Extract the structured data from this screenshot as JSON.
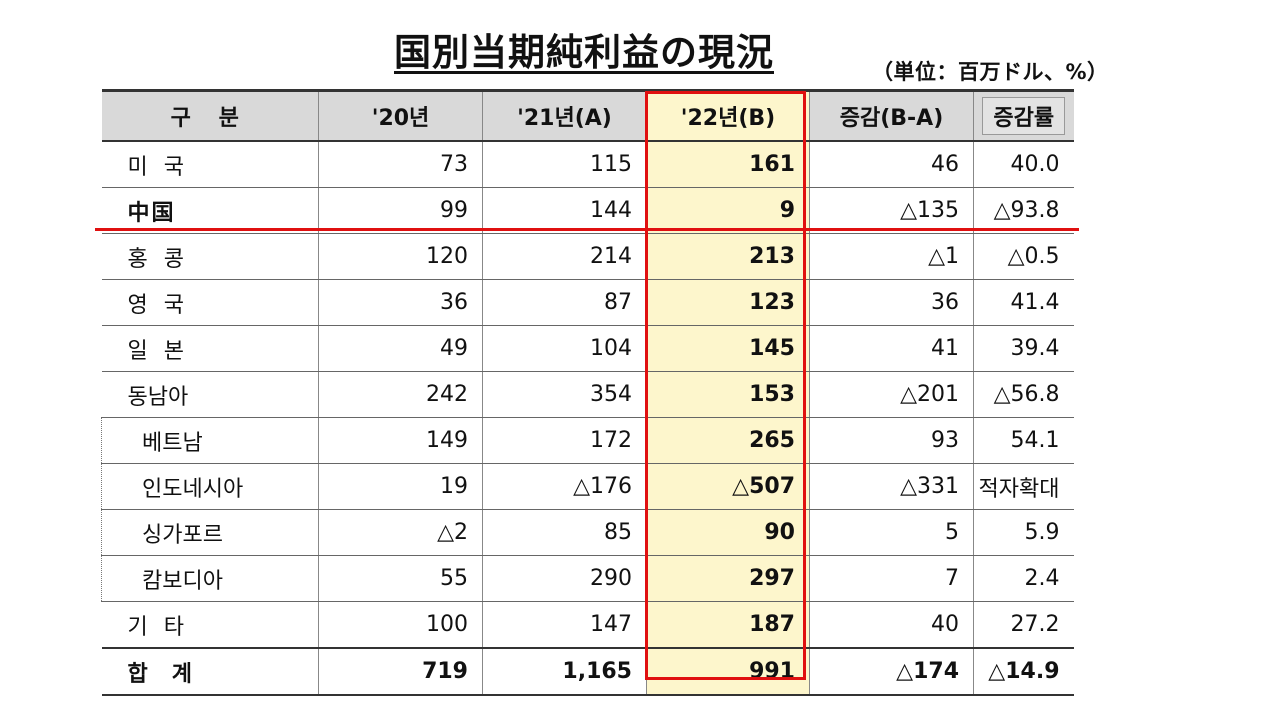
{
  "title": "国別当期純利益の現況",
  "unit": "（単位：百万ドル、%）",
  "colors": {
    "highlight": "#fdf6cc",
    "accent_red": "#e01010",
    "header_bg": "#d9d9d9"
  },
  "table": {
    "headers": [
      "구 분",
      "'20년",
      "'21년(A)",
      "'22년(B)",
      "증감(B-A)",
      "증감률"
    ],
    "rows": [
      {
        "label": "미국",
        "values": [
          "73",
          "115",
          "161",
          "46",
          "40.0"
        ]
      },
      {
        "label": "中国",
        "values": [
          "99",
          "144",
          "9",
          "△135",
          "△93.8"
        ]
      },
      {
        "label": "홍콩",
        "values": [
          "120",
          "214",
          "213",
          "△1",
          "△0.5"
        ]
      },
      {
        "label": "영국",
        "values": [
          "36",
          "87",
          "123",
          "36",
          "41.4"
        ]
      },
      {
        "label": "일본",
        "values": [
          "49",
          "104",
          "145",
          "41",
          "39.4"
        ]
      },
      {
        "label": "동남아",
        "values": [
          "242",
          "354",
          "153",
          "△201",
          "△56.8"
        ]
      },
      {
        "label": "베트남",
        "values": [
          "149",
          "172",
          "265",
          "93",
          "54.1"
        ]
      },
      {
        "label": "인도네시아",
        "values": [
          "19",
          "△176",
          "△507",
          "△331",
          "적자확대"
        ]
      },
      {
        "label": "싱가포르",
        "values": [
          "△2",
          "85",
          "90",
          "5",
          "5.9"
        ]
      },
      {
        "label": "캄보디아",
        "values": [
          "55",
          "290",
          "297",
          "7",
          "2.4"
        ]
      },
      {
        "label": "기타",
        "values": [
          "100",
          "147",
          "187",
          "40",
          "27.2"
        ]
      },
      {
        "label": "합계",
        "values": [
          "719",
          "1,165",
          "991",
          "△174",
          "△14.9"
        ]
      }
    ]
  }
}
